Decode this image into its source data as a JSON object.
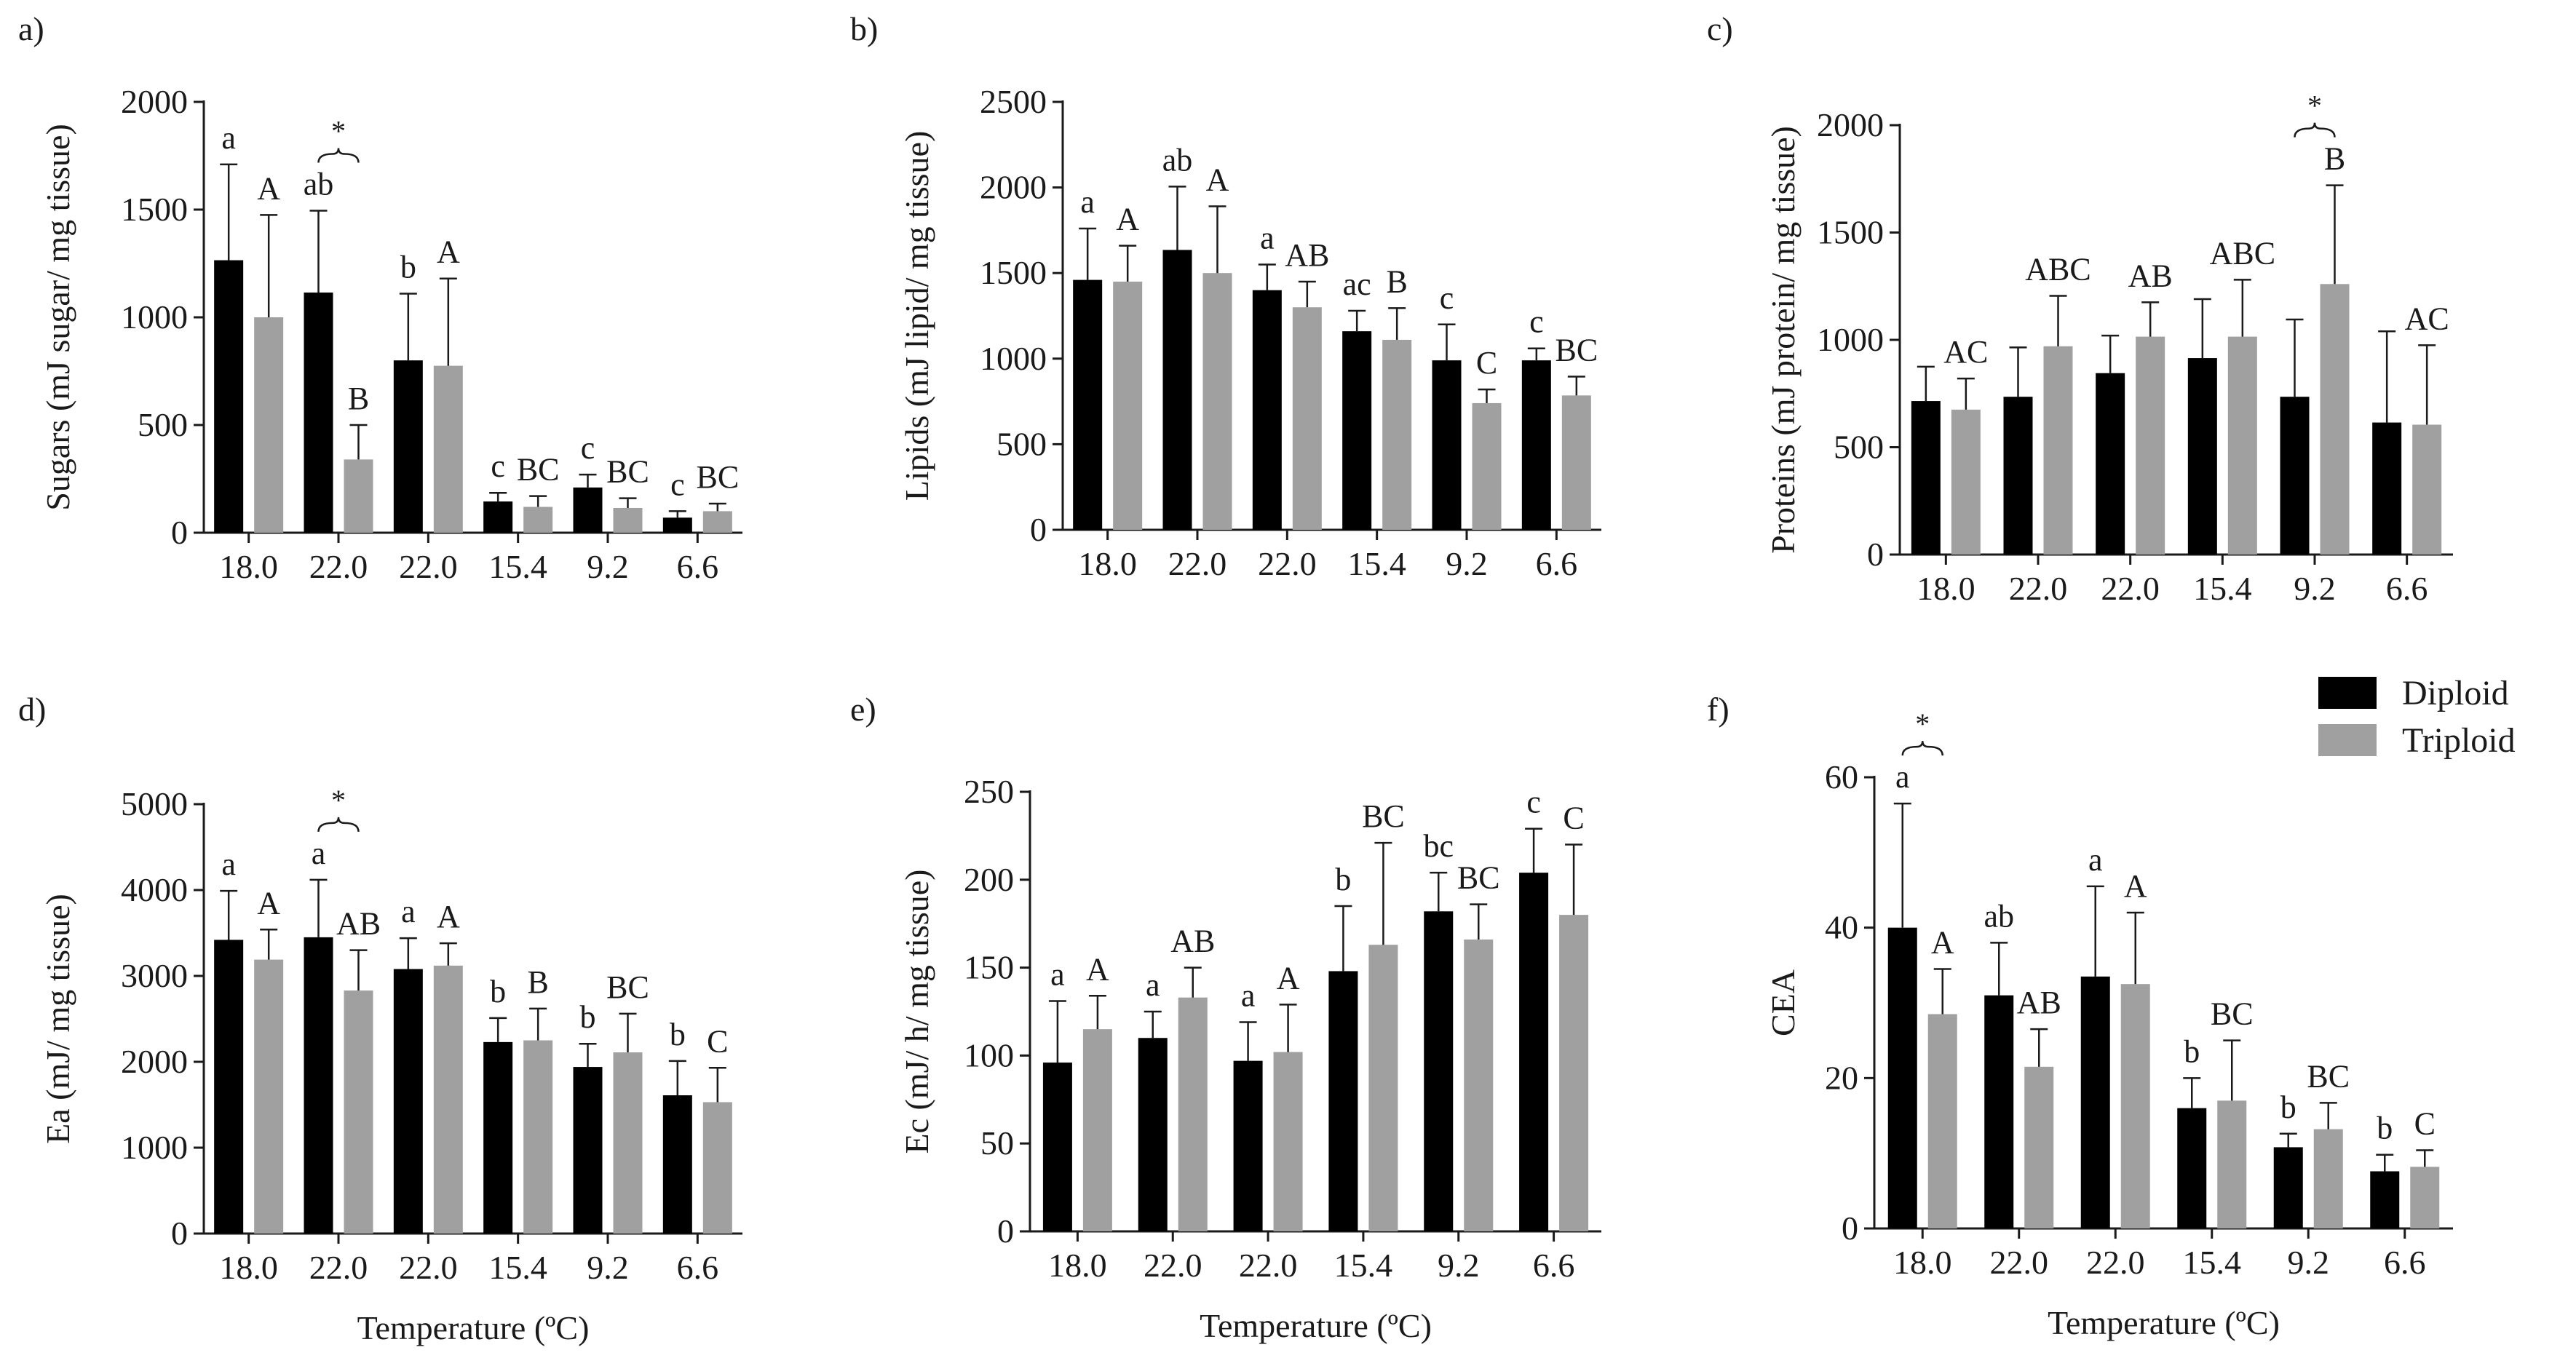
{
  "colors": {
    "diploid": "#000000",
    "triploid": "#a0a0a0"
  },
  "legend": {
    "placement": "top-right",
    "items": [
      "Diploid",
      "Triploid"
    ]
  },
  "chart_data": [
    {
      "panel": "a)",
      "type": "bar",
      "categories": [
        "18.0",
        "22.0",
        "22.0",
        "15.4",
        "9.2",
        "6.6"
      ],
      "xlabel": "",
      "ylabel": "Sugars (mJ sugar/ mg tissue)",
      "ylim": [
        0,
        2000
      ],
      "yticks": [
        "0",
        "500",
        "1000",
        "1500",
        "2000"
      ],
      "series": [
        {
          "name": "Diploid",
          "values": [
            1265,
            1115,
            800,
            145,
            210,
            70
          ],
          "errors": [
            445,
            380,
            310,
            40,
            60,
            30
          ],
          "letters": [
            "a",
            "ab",
            "b",
            "c",
            "c",
            "c"
          ]
        },
        {
          "name": "Triploid",
          "values": [
            1000,
            340,
            775,
            120,
            115,
            100
          ],
          "errors": [
            475,
            160,
            405,
            50,
            45,
            35
          ],
          "letters": [
            "A",
            "B",
            "A",
            "BC",
            "BC",
            "BC"
          ]
        }
      ],
      "stars": [
        1
      ]
    },
    {
      "panel": "b)",
      "type": "bar",
      "categories": [
        "18.0",
        "22.0",
        "22.0",
        "15.4",
        "9.2",
        "6.6"
      ],
      "xlabel": "",
      "ylabel": "Lipids (mJ lipid/ mg tissue)",
      "ylim": [
        0,
        2500
      ],
      "yticks": [
        "0",
        "500",
        "1000",
        "1500",
        "2000",
        "2500"
      ],
      "series": [
        {
          "name": "Diploid",
          "values": [
            1460,
            1635,
            1400,
            1160,
            990,
            990
          ],
          "errors": [
            300,
            370,
            150,
            120,
            210,
            70
          ],
          "letters": [
            "a",
            "ab",
            "a",
            "ac",
            "c",
            "c"
          ]
        },
        {
          "name": "Triploid",
          "values": [
            1450,
            1500,
            1300,
            1110,
            740,
            785
          ],
          "errors": [
            210,
            390,
            150,
            185,
            80,
            110
          ],
          "letters": [
            "A",
            "A",
            "AB",
            "B",
            "C",
            "BC"
          ]
        }
      ],
      "stars": []
    },
    {
      "panel": "c)",
      "type": "bar",
      "categories": [
        "18.0",
        "22.0",
        "22.0",
        "15.4",
        "9.2",
        "6.6"
      ],
      "xlabel": "",
      "ylabel": "Proteins (mJ protein/ mg tissue)",
      "ylim": [
        0,
        2000
      ],
      "yticks": [
        "0",
        "500",
        "1000",
        "1500",
        "2000"
      ],
      "series": [
        {
          "name": "Diploid",
          "values": [
            715,
            735,
            845,
            915,
            735,
            615
          ],
          "errors": [
            160,
            230,
            175,
            275,
            360,
            425
          ],
          "letters": [
            "",
            "",
            "",
            "",
            "",
            ""
          ]
        },
        {
          "name": "Triploid",
          "values": [
            675,
            970,
            1015,
            1015,
            1260,
            605
          ],
          "errors": [
            145,
            235,
            160,
            265,
            460,
            370
          ],
          "letters": [
            "AC",
            "ABC",
            "AB",
            "ABC",
            "B",
            "AC"
          ]
        }
      ],
      "stars": [
        4
      ]
    },
    {
      "panel": "d)",
      "type": "bar",
      "categories": [
        "18.0",
        "22.0",
        "22.0",
        "15.4",
        "9.2",
        "6.6"
      ],
      "xlabel": "Temperature (ºC)",
      "ylabel": "Ea (mJ/ mg tissue)",
      "ylim": [
        0,
        5000
      ],
      "yticks": [
        "0",
        "1000",
        "2000",
        "3000",
        "4000",
        "5000"
      ],
      "series": [
        {
          "name": "Diploid",
          "values": [
            3420,
            3450,
            3080,
            2230,
            1940,
            1610
          ],
          "errors": [
            570,
            670,
            360,
            280,
            270,
            400
          ],
          "letters": [
            "a",
            "a",
            "a",
            "b",
            "b",
            "b"
          ]
        },
        {
          "name": "Triploid",
          "values": [
            3190,
            2830,
            3120,
            2250,
            2110,
            1530
          ],
          "errors": [
            350,
            470,
            260,
            370,
            450,
            400
          ],
          "letters": [
            "A",
            "AB",
            "A",
            "B",
            "BC",
            "C"
          ]
        }
      ],
      "stars": [
        1
      ]
    },
    {
      "panel": "e)",
      "type": "bar",
      "categories": [
        "18.0",
        "22.0",
        "22.0",
        "15.4",
        "9.2",
        "6.6"
      ],
      "xlabel": "Temperature (ºC)",
      "ylabel": "Ec (mJ/ h/ mg tissue)",
      "ylim": [
        0,
        250
      ],
      "yticks": [
        "0",
        "50",
        "100",
        "150",
        "200",
        "250"
      ],
      "series": [
        {
          "name": "Diploid",
          "values": [
            96,
            110,
            97,
            148,
            182,
            204
          ],
          "errors": [
            35,
            15,
            22,
            37,
            22,
            25
          ],
          "letters": [
            "a",
            "a",
            "a",
            "b",
            "bc",
            "c"
          ]
        },
        {
          "name": "Triploid",
          "values": [
            115,
            133,
            102,
            163,
            166,
            180
          ],
          "errors": [
            19,
            17,
            27,
            58,
            20,
            40
          ],
          "letters": [
            "A",
            "AB",
            "A",
            "BC",
            "BC",
            "C"
          ]
        }
      ],
      "stars": []
    },
    {
      "panel": "f)",
      "type": "bar",
      "categories": [
        "18.0",
        "22.0",
        "22.0",
        "15.4",
        "9.2",
        "6.6"
      ],
      "xlabel": "Temperature (ºC)",
      "ylabel": "CEA",
      "ylim": [
        0,
        60
      ],
      "yticks": [
        "0",
        "20",
        "40",
        "60"
      ],
      "series": [
        {
          "name": "Diploid",
          "values": [
            40,
            31,
            33.5,
            16,
            10.8,
            7.6
          ],
          "errors": [
            16.5,
            7,
            12,
            4,
            1.8,
            2.2
          ],
          "letters": [
            "a",
            "ab",
            "a",
            "b",
            "b",
            "b"
          ]
        },
        {
          "name": "Triploid",
          "values": [
            28.5,
            21.5,
            32.5,
            17,
            13.2,
            8.2
          ],
          "errors": [
            6,
            5,
            9.5,
            8,
            3.5,
            2.2
          ],
          "letters": [
            "A",
            "AB",
            "A",
            "BC",
            "BC",
            "C"
          ]
        }
      ],
      "stars": [
        0
      ]
    }
  ]
}
